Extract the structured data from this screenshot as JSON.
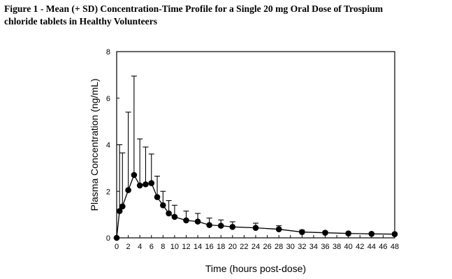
{
  "caption": {
    "line1": "Figure 1 - Mean (+ SD) Concentration-Time  Profile for a Single 20 mg Oral Dose of Trospium",
    "line2": "chloride  tablets in Healthy Volunteers"
  },
  "chart_data": {
    "type": "line",
    "title": "Figure 1 - Mean (+ SD) Concentration-Time  Profile for a Single 20 mg Oral Dose of Trospium chloride  tablets in Healthy Volunteers",
    "xlabel": "Time (hours post-dose)",
    "ylabel": "Plasma Concentration (ng/mL)",
    "xlim": [
      0,
      48
    ],
    "ylim": [
      0,
      8
    ],
    "x_ticks": [
      0,
      2,
      4,
      6,
      8,
      10,
      12,
      14,
      16,
      18,
      20,
      22,
      24,
      26,
      28,
      30,
      32,
      34,
      36,
      38,
      40,
      42,
      44,
      46,
      48
    ],
    "y_ticks": [
      0,
      2,
      4,
      6,
      8
    ],
    "grid": false,
    "series": [
      {
        "marker": "circle",
        "color": "#000000",
        "x": [
          0,
          0.5,
          1,
          2,
          3,
          4,
          5,
          6,
          7,
          8,
          9,
          10,
          12,
          14,
          16,
          18,
          20,
          24,
          28,
          32,
          36,
          40,
          44,
          48
        ],
        "y": [
          0,
          1.15,
          1.35,
          2.05,
          2.7,
          2.25,
          2.3,
          2.35,
          1.75,
          1.4,
          1.05,
          0.9,
          0.75,
          0.7,
          0.55,
          0.52,
          0.47,
          0.43,
          0.37,
          0.25,
          0.22,
          0.19,
          0.17,
          0.16
        ],
        "sd": [
          0,
          2.85,
          2.3,
          3.35,
          4.25,
          2.0,
          1.6,
          1.25,
          0.9,
          0.6,
          0.55,
          0.5,
          0.4,
          0.35,
          0.3,
          0.25,
          0.22,
          0.2,
          0.15,
          0.08,
          0.06,
          0.05,
          0.04,
          0.04
        ]
      }
    ]
  }
}
